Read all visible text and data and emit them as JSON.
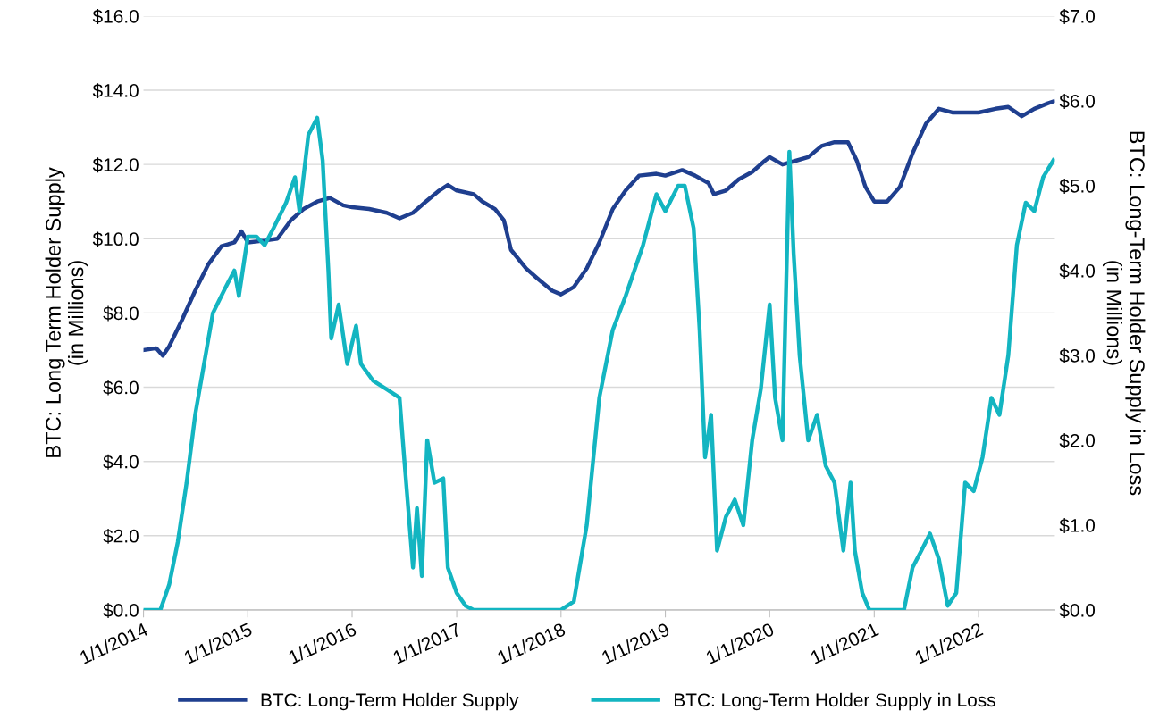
{
  "chart_data": {
    "type": "line",
    "ylabel": "BTC: Long Term Holder Supply\n(in Millions)",
    "y2label": "BTC: Long-Term Holder Supply in Loss\n(in Millions)",
    "xlim": [
      "2014-01-01",
      "2022-09-25"
    ],
    "xticks": [
      {
        "value": "2014-01-01",
        "label": "1/1/2014"
      },
      {
        "value": "2015-01-01",
        "label": "1/1/2015"
      },
      {
        "value": "2016-01-01",
        "label": "1/1/2016"
      },
      {
        "value": "2017-01-01",
        "label": "1/1/2017"
      },
      {
        "value": "2018-01-01",
        "label": "1/1/2018"
      },
      {
        "value": "2019-01-01",
        "label": "1/1/2019"
      },
      {
        "value": "2020-01-01",
        "label": "1/1/2020"
      },
      {
        "value": "2021-01-01",
        "label": "1/1/2021"
      },
      {
        "value": "2022-01-01",
        "label": "1/1/2022"
      }
    ],
    "ylim": [
      0,
      16
    ],
    "yticks": [
      {
        "value": 0,
        "label": "$0.0"
      },
      {
        "value": 2,
        "label": "$2.0"
      },
      {
        "value": 4,
        "label": "$4.0"
      },
      {
        "value": 6,
        "label": "$6.0"
      },
      {
        "value": 8,
        "label": "$8.0"
      },
      {
        "value": 10,
        "label": "$10.0"
      },
      {
        "value": 12,
        "label": "$12.0"
      },
      {
        "value": 14,
        "label": "$14.0"
      },
      {
        "value": 16,
        "label": "$16.0"
      }
    ],
    "y2lim": [
      0,
      7
    ],
    "y2ticks": [
      {
        "value": 0,
        "label": "$0.0"
      },
      {
        "value": 1,
        "label": "$1.0"
      },
      {
        "value": 2,
        "label": "$2.0"
      },
      {
        "value": 3,
        "label": "$3.0"
      },
      {
        "value": 4,
        "label": "$4.0"
      },
      {
        "value": 5,
        "label": "$5.0"
      },
      {
        "value": 6,
        "label": "$6.0"
      },
      {
        "value": 7,
        "label": "$7.0"
      }
    ],
    "grid": "y",
    "legend": "bottom",
    "line_style": "solid",
    "marker": "none",
    "series": [
      {
        "name": "BTC: Long-Term Holder Supply",
        "color": "#1f3f8f",
        "x": [
          "2014-01-01",
          "2014-02-15",
          "2014-03-10",
          "2014-04-01",
          "2014-05-15",
          "2014-07-01",
          "2014-08-15",
          "2014-10-01",
          "2014-11-15",
          "2014-12-10",
          "2015-01-01",
          "2015-03-01",
          "2015-04-15",
          "2015-06-01",
          "2015-07-15",
          "2015-09-01",
          "2015-10-15",
          "2015-12-01",
          "2016-01-01",
          "2016-03-01",
          "2016-05-01",
          "2016-06-15",
          "2016-08-01",
          "2016-09-15",
          "2016-11-01",
          "2016-12-01",
          "2017-01-01",
          "2017-03-01",
          "2017-04-01",
          "2017-05-15",
          "2017-06-15",
          "2017-07-10",
          "2017-09-01",
          "2017-10-15",
          "2017-12-01",
          "2018-01-01",
          "2018-02-15",
          "2018-04-01",
          "2018-05-15",
          "2018-07-01",
          "2018-08-15",
          "2018-10-01",
          "2018-12-01",
          "2019-01-01",
          "2019-03-01",
          "2019-04-15",
          "2019-06-01",
          "2019-06-20",
          "2019-08-01",
          "2019-09-15",
          "2019-11-01",
          "2019-12-15",
          "2020-01-01",
          "2020-02-15",
          "2020-04-01",
          "2020-05-15",
          "2020-07-01",
          "2020-08-15",
          "2020-10-01",
          "2020-11-01",
          "2020-12-01",
          "2021-01-01",
          "2021-02-15",
          "2021-04-01",
          "2021-05-15",
          "2021-07-01",
          "2021-08-15",
          "2021-10-01",
          "2021-11-15",
          "2022-01-01",
          "2022-03-01",
          "2022-04-15",
          "2022-06-01",
          "2022-07-15",
          "2022-09-01",
          "2022-09-20"
        ],
        "values": [
          7.0,
          7.05,
          6.85,
          7.1,
          7.8,
          8.6,
          9.3,
          9.8,
          9.9,
          10.2,
          9.9,
          9.95,
          10.0,
          10.5,
          10.8,
          11.0,
          11.1,
          10.9,
          10.85,
          10.8,
          10.7,
          10.55,
          10.7,
          11.0,
          11.3,
          11.45,
          11.3,
          11.2,
          11.0,
          10.8,
          10.5,
          9.7,
          9.2,
          8.9,
          8.6,
          8.5,
          8.7,
          9.2,
          9.9,
          10.8,
          11.3,
          11.7,
          11.75,
          11.7,
          11.85,
          11.7,
          11.5,
          11.2,
          11.3,
          11.6,
          11.8,
          12.1,
          12.2,
          12.0,
          12.1,
          12.2,
          12.5,
          12.6,
          12.6,
          12.1,
          11.4,
          11.0,
          11.0,
          11.4,
          12.3,
          13.1,
          13.5,
          13.4,
          13.4,
          13.4,
          13.5,
          13.55,
          13.3,
          13.5,
          13.65,
          13.7
        ]
      },
      {
        "name": "BTC: Long-Term Holder Supply in Loss",
        "color": "#13b5c1",
        "axis": "y2",
        "x": [
          "2014-01-01",
          "2014-03-01",
          "2014-04-01",
          "2014-05-01",
          "2014-06-01",
          "2014-07-01",
          "2014-08-01",
          "2014-09-01",
          "2014-10-15",
          "2014-11-15",
          "2014-12-01",
          "2015-01-01",
          "2015-02-01",
          "2015-03-01",
          "2015-04-01",
          "2015-05-15",
          "2015-06-15",
          "2015-07-01",
          "2015-08-01",
          "2015-09-01",
          "2015-09-20",
          "2015-10-10",
          "2015-10-20",
          "2015-11-15",
          "2015-12-15",
          "2016-01-15",
          "2016-02-01",
          "2016-03-15",
          "2016-05-01",
          "2016-06-15",
          "2016-07-01",
          "2016-08-01",
          "2016-08-15",
          "2016-09-01",
          "2016-09-20",
          "2016-10-15",
          "2016-11-15",
          "2016-12-01",
          "2017-01-01",
          "2017-02-01",
          "2017-03-01",
          "2018-01-01",
          "2018-02-15",
          "2018-04-01",
          "2018-05-15",
          "2018-07-01",
          "2018-08-15",
          "2018-10-15",
          "2018-12-01",
          "2019-01-01",
          "2019-02-15",
          "2019-03-10",
          "2019-04-10",
          "2019-05-01",
          "2019-05-20",
          "2019-06-10",
          "2019-07-01",
          "2019-08-01",
          "2019-09-01",
          "2019-10-01",
          "2019-11-01",
          "2019-12-01",
          "2020-01-01",
          "2020-01-20",
          "2020-02-15",
          "2020-03-10",
          "2020-03-25",
          "2020-04-15",
          "2020-05-15",
          "2020-06-15",
          "2020-07-15",
          "2020-08-15",
          "2020-09-15",
          "2020-10-10",
          "2020-10-25",
          "2020-11-20",
          "2020-12-15",
          "2021-04-15",
          "2021-05-15",
          "2021-06-15",
          "2021-07-15",
          "2021-08-15",
          "2021-09-15",
          "2021-10-15",
          "2021-11-15",
          "2021-12-15",
          "2022-01-15",
          "2022-02-15",
          "2022-03-15",
          "2022-04-15",
          "2022-05-15",
          "2022-06-15",
          "2022-07-15",
          "2022-08-15",
          "2022-09-20"
        ],
        "values": [
          0,
          0,
          0.3,
          0.8,
          1.5,
          2.3,
          2.9,
          3.5,
          3.8,
          4.0,
          3.7,
          4.4,
          4.4,
          4.3,
          4.5,
          4.8,
          5.1,
          4.7,
          5.6,
          5.8,
          5.3,
          4.0,
          3.2,
          3.6,
          2.9,
          3.35,
          2.9,
          2.7,
          2.6,
          2.5,
          1.8,
          0.5,
          1.2,
          0.4,
          2.0,
          1.5,
          1.55,
          0.5,
          0.2,
          0.05,
          0,
          0,
          0.1,
          1.0,
          2.5,
          3.3,
          3.7,
          4.3,
          4.9,
          4.7,
          5.0,
          5.0,
          4.5,
          3.3,
          1.8,
          2.3,
          0.7,
          1.1,
          1.3,
          1.0,
          2.0,
          2.6,
          3.6,
          2.5,
          2.0,
          5.4,
          4.2,
          3.0,
          2.0,
          2.3,
          1.7,
          1.5,
          0.7,
          1.5,
          0.7,
          0.2,
          0,
          0,
          0.5,
          0.7,
          0.9,
          0.6,
          0.05,
          0.2,
          1.5,
          1.4,
          1.8,
          2.5,
          2.3,
          3.0,
          4.3,
          4.8,
          4.7,
          5.1,
          5.3
        ]
      }
    ]
  }
}
